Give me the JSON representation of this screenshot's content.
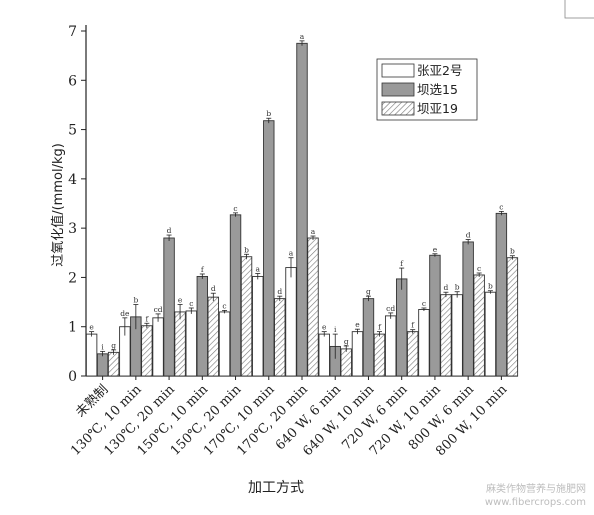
{
  "watermark": {
    "line1": "麻类作物营养与施肥网",
    "line2": "www.fibercrops.com"
  },
  "chart_data": {
    "type": "bar",
    "xlabel": "加工方式",
    "ylabel": "过氧化值/(mmol/kg)",
    "ylim": [
      0,
      7
    ],
    "yticks": [
      0,
      1,
      2,
      3,
      4,
      5,
      6,
      7
    ],
    "grid": false,
    "legend_position": "top-right",
    "categories": [
      "未熟制",
      "130℃, 10 min",
      "130℃, 20 min",
      "150℃, 10 min",
      "150℃, 20 min",
      "170℃, 10 min",
      "170℃, 20 min",
      "640 W, 6 min",
      "640 W, 10 min",
      "720 W, 6 min",
      "720 W, 10 min",
      "800 W, 6 min",
      "800 W, 10 min"
    ],
    "series": [
      {
        "name": "张亚2号",
        "color": "#ffffff",
        "pattern": "none",
        "values": [
          0.85,
          1.0,
          1.18,
          1.32,
          1.3,
          2.02,
          2.2,
          0.85,
          0.9,
          1.22,
          1.35,
          1.65,
          1.7
        ],
        "errors": [
          0.05,
          0.18,
          0.08,
          0.06,
          0.03,
          0.06,
          0.2,
          0.05,
          0.05,
          0.06,
          0.03,
          0.06,
          0.03
        ],
        "labels": [
          "e",
          "de",
          "cd",
          "c",
          "c",
          "a",
          "a",
          "e",
          "e",
          "cd",
          "c",
          "b",
          "b"
        ]
      },
      {
        "name": "坝选15",
        "color": "#9a9a9a",
        "pattern": "none",
        "values": [
          0.45,
          1.2,
          2.8,
          2.02,
          3.27,
          5.18,
          6.75,
          0.6,
          1.57,
          1.97,
          2.45,
          2.72,
          3.3
        ],
        "errors": [
          0.05,
          0.25,
          0.06,
          0.05,
          0.04,
          0.05,
          0.05,
          0.25,
          0.05,
          0.22,
          0.03,
          0.05,
          0.04
        ],
        "labels": [
          "i",
          "b",
          "d",
          "f",
          "c",
          "b",
          "a",
          "i",
          "g",
          "f",
          "e",
          "d",
          "c"
        ]
      },
      {
        "name": "坝亚19",
        "color": "#ffffff",
        "pattern": "hatch",
        "values": [
          0.48,
          1.02,
          1.3,
          1.6,
          2.42,
          1.57,
          2.8,
          0.55,
          0.85,
          0.9,
          1.65,
          2.05,
          2.4
        ],
        "errors": [
          0.05,
          0.05,
          0.15,
          0.08,
          0.05,
          0.05,
          0.04,
          0.06,
          0.05,
          0.04,
          0.05,
          0.04,
          0.04
        ],
        "labels": [
          "g",
          "f",
          "e",
          "d",
          "b",
          "d",
          "a",
          "g",
          "f",
          "f",
          "d",
          "c",
          "b"
        ]
      }
    ]
  }
}
